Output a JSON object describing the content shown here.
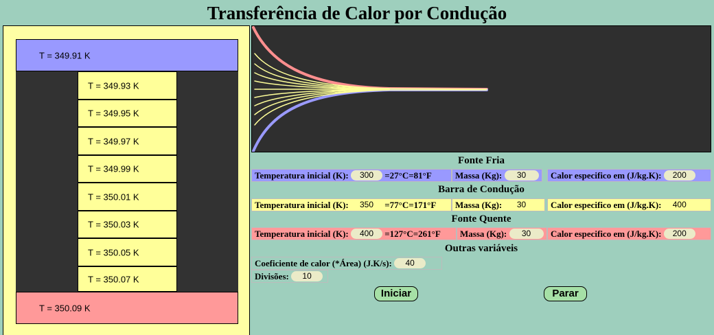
{
  "title": "Transferência de Calor por Condução",
  "blocks": {
    "cold": "T = 349.91 K",
    "segments": [
      "T = 349.93 K",
      "T = 349.95 K",
      "T = 349.97 K",
      "T = 349.99 K",
      "T = 350.01 K",
      "T = 350.03 K",
      "T = 350.05 K",
      "T = 350.07 K"
    ],
    "hot": "T = 350.09 K"
  },
  "colors": {
    "cold": "#9999ff",
    "bar": "#ffff99",
    "hot": "#ff9999",
    "background": "#9ecfbd"
  },
  "fonte_fria": {
    "title": "Fonte Fria",
    "temp_label": "Temperatura inicial (K):",
    "temp_value": "300",
    "temp_conv": "=27°C=81°F",
    "massa_label": "Massa (Kg):",
    "massa_value": "30",
    "calor_label": "Calor especifico em (J/kg.K):",
    "calor_value": "200"
  },
  "barra": {
    "title": "Barra de Condução",
    "temp_label": "Temperatura inicial (K):",
    "temp_value": "350",
    "temp_conv": "=77°C=171°F",
    "massa_label": "Massa (Kg):",
    "massa_value": "30",
    "calor_label": "Calor especifico em (J/kg.K):",
    "calor_value": "400"
  },
  "fonte_quente": {
    "title": "Fonte Quente",
    "temp_label": "Temperatura inicial (K):",
    "temp_value": "400",
    "temp_conv": "=127°C=261°F",
    "massa_label": "Massa (Kg):",
    "massa_value": "30",
    "calor_label": "Calor especifico em (J/kg.K):",
    "calor_value": "200"
  },
  "outras": {
    "title": "Outras variáveis",
    "coef_label": "Coeficiente de calor (*Área) (J.K/s):",
    "coef_value": "40",
    "div_label": "Divisões:",
    "div_value": "10"
  },
  "buttons": {
    "start": "Iniciar",
    "stop": "Parar"
  }
}
